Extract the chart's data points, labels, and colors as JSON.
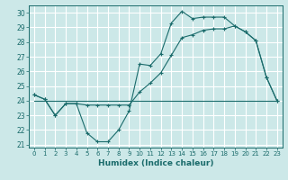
{
  "xlabel": "Humidex (Indice chaleur)",
  "ylabel": "",
  "background_color": "#cce8e8",
  "grid_color": "#ffffff",
  "line_color": "#1a6b6b",
  "xlim": [
    -0.5,
    23.5
  ],
  "ylim": [
    20.8,
    30.5
  ],
  "yticks": [
    21,
    22,
    23,
    24,
    25,
    26,
    27,
    28,
    29,
    30
  ],
  "xticks": [
    0,
    1,
    2,
    3,
    4,
    5,
    6,
    7,
    8,
    9,
    10,
    11,
    12,
    13,
    14,
    15,
    16,
    17,
    18,
    19,
    20,
    21,
    22,
    23
  ],
  "line1_x": [
    0,
    1,
    2,
    3,
    4,
    5,
    6,
    7,
    8,
    9,
    10,
    11,
    12,
    13,
    14,
    15,
    16,
    17,
    18,
    19,
    20,
    21,
    22,
    23
  ],
  "line1_y": [
    24.4,
    24.1,
    23.0,
    23.8,
    23.8,
    21.8,
    21.2,
    21.2,
    22.0,
    23.3,
    26.5,
    26.4,
    27.2,
    29.3,
    30.1,
    29.6,
    29.7,
    29.7,
    29.7,
    29.1,
    28.7,
    28.1,
    25.6,
    24.0
  ],
  "line2_x": [
    0,
    1,
    2,
    3,
    4,
    5,
    6,
    7,
    8,
    9,
    10,
    11,
    12,
    13,
    14,
    15,
    16,
    17,
    18,
    19,
    20,
    21,
    22,
    23
  ],
  "line2_y": [
    24.4,
    24.1,
    23.0,
    23.8,
    23.8,
    23.7,
    23.7,
    23.7,
    23.7,
    23.7,
    24.6,
    25.2,
    25.9,
    27.1,
    28.3,
    28.5,
    28.8,
    28.9,
    28.9,
    29.1,
    28.7,
    28.1,
    25.6,
    24.0
  ],
  "line3_x": [
    0,
    23
  ],
  "line3_y": [
    24.0,
    24.0
  ],
  "marker": "+"
}
